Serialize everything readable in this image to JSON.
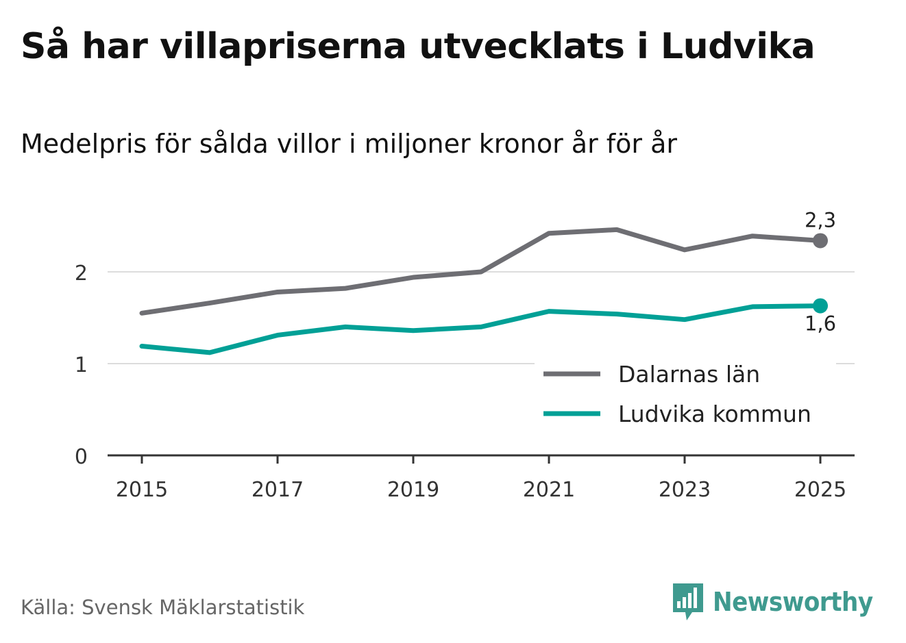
{
  "chart_data": {
    "type": "line",
    "title": "Så har villapriserna utvecklats i Ludvika",
    "subtitle": "Medelpris för sålda villor i miljoner kronor år för år",
    "x": [
      2015,
      2016,
      2017,
      2018,
      2019,
      2020,
      2021,
      2022,
      2023,
      2024,
      2025
    ],
    "x_ticks": [
      "2015",
      "2017",
      "2019",
      "2021",
      "2023",
      "2025"
    ],
    "y_ticks": [
      "0",
      "1",
      "2"
    ],
    "ylim": [
      0,
      2.6
    ],
    "grid": true,
    "legend_position": "bottom-right",
    "series": [
      {
        "name": "Dalarnas län",
        "color": "#6e6e73",
        "values": [
          1.55,
          1.66,
          1.78,
          1.82,
          1.94,
          2.0,
          2.42,
          2.46,
          2.24,
          2.39,
          2.34
        ],
        "end_label": "2,3"
      },
      {
        "name": "Ludvika kommun",
        "color": "#00a096",
        "values": [
          1.19,
          1.12,
          1.31,
          1.4,
          1.36,
          1.4,
          1.57,
          1.54,
          1.48,
          1.62,
          1.63
        ],
        "end_label": "1,6"
      }
    ]
  },
  "footer": {
    "source": "Källa: Svensk Mäklarstatistik",
    "brand": "Newsworthy",
    "brand_icon": "newsworthy-logo-icon",
    "brand_color": "#3f9a8f"
  }
}
